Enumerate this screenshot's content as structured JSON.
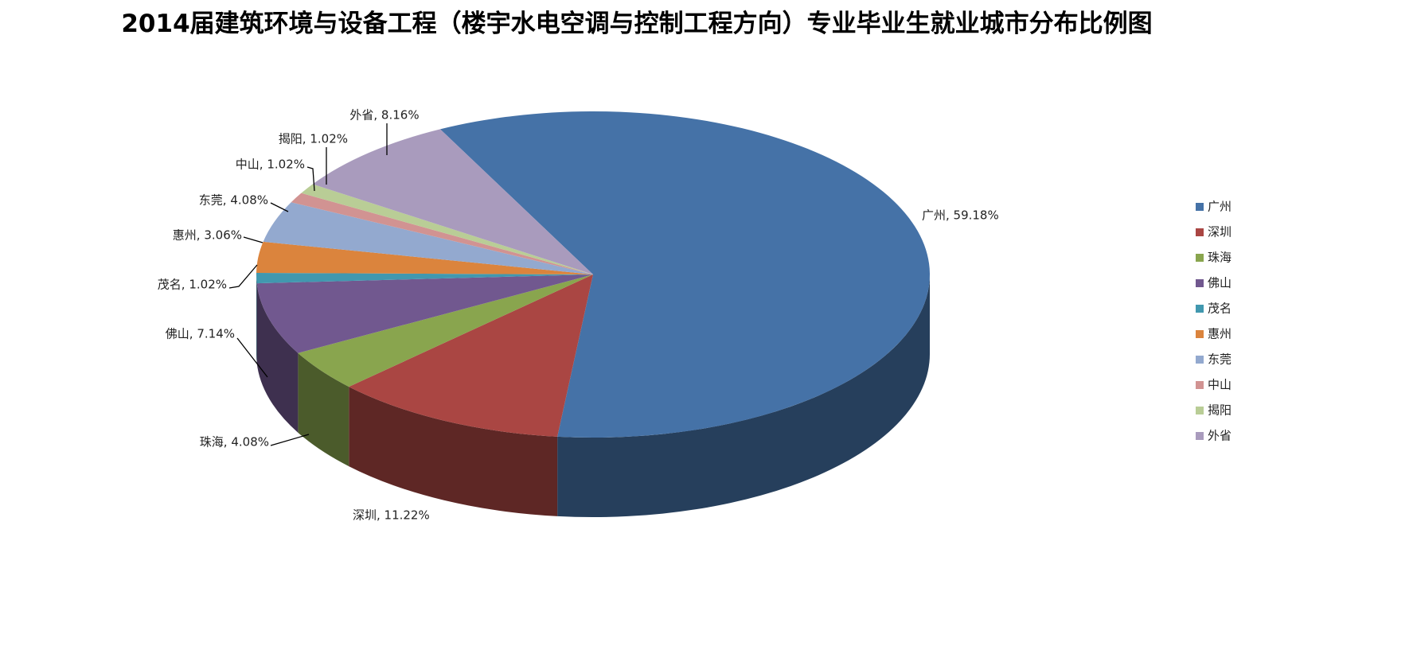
{
  "chart_data": {
    "type": "pie",
    "title": "2014届建筑环境与设备工程（楼宇水电空调与控制工程方向）专业毕业生就业城市分布比例图",
    "categories": [
      "广州",
      "深圳",
      "珠海",
      "佛山",
      "茂名",
      "惠州",
      "东莞",
      "中山",
      "揭阳",
      "外省"
    ],
    "values": [
      59.18,
      11.22,
      4.08,
      7.14,
      1.02,
      3.06,
      4.08,
      1.02,
      1.02,
      8.16
    ],
    "value_labels": [
      "广州, 59.18%",
      "深圳, 11.22%",
      "珠海, 4.08%",
      "佛山, 7.14%",
      "茂名, 1.02%",
      "惠州, 3.06%",
      "东莞, 4.08%",
      "中山, 1.02%",
      "揭阳, 1.02%",
      "外省, 8.16%"
    ],
    "colors": [
      "#4572a7",
      "#aa4643",
      "#89a54e",
      "#71588f",
      "#4198af",
      "#db843d",
      "#93a9cf",
      "#d19392",
      "#b9cd96",
      "#a99bbd"
    ],
    "legend": "right"
  }
}
